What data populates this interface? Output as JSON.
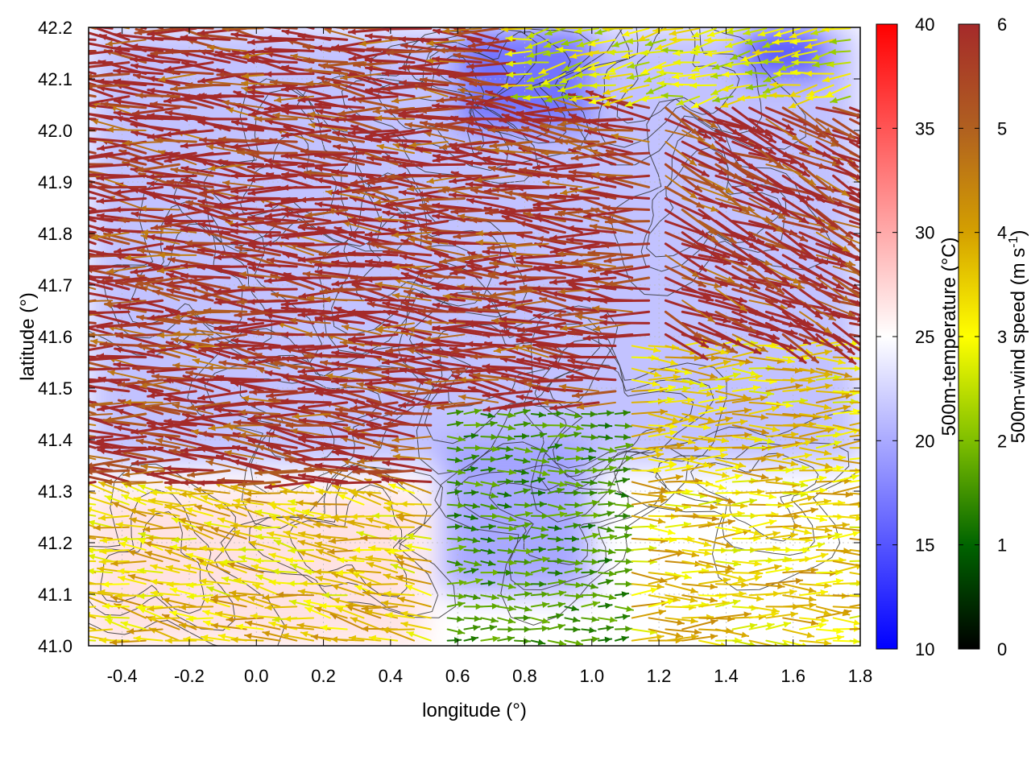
{
  "chart_data": {
    "type": "vector-field",
    "xlabel": "longitude (°)",
    "ylabel": "latitude (°)",
    "xlim": [
      -0.5,
      1.8
    ],
    "ylim": [
      41.0,
      42.2
    ],
    "x_ticks": [
      "-0.4",
      "-0.2",
      "0.0",
      "0.2",
      "0.4",
      "0.6",
      "0.8",
      "1.0",
      "1.2",
      "1.4",
      "1.6",
      "1.8"
    ],
    "x_tick_values": [
      -0.4,
      -0.2,
      0.0,
      0.2,
      0.4,
      0.6,
      0.8,
      1.0,
      1.2,
      1.4,
      1.6,
      1.8
    ],
    "y_ticks": [
      "41.0",
      "41.1",
      "41.2",
      "41.3",
      "41.4",
      "41.5",
      "41.6",
      "41.7",
      "41.8",
      "41.9",
      "42.0",
      "42.1",
      "42.2"
    ],
    "y_tick_values": [
      41.0,
      41.1,
      41.2,
      41.3,
      41.4,
      41.5,
      41.6,
      41.7,
      41.8,
      41.9,
      42.0,
      42.1,
      42.2
    ],
    "grid": true,
    "colorbars": [
      {
        "label": "500m-temperature (°C)",
        "range": [
          10,
          40
        ],
        "ticks": [
          "10",
          "15",
          "20",
          "25",
          "30",
          "35",
          "40"
        ],
        "tick_values": [
          10,
          15,
          20,
          25,
          30,
          35,
          40
        ],
        "colors": [
          "#0000ff",
          "#ffffff",
          "#ff0000"
        ]
      },
      {
        "label": "500m-wind speed (m s",
        "label_sup": "-1",
        "label_end": ")",
        "range": [
          0,
          6
        ],
        "ticks": [
          "0",
          "1",
          "2",
          "3",
          "4",
          "5",
          "6"
        ],
        "tick_values": [
          0,
          1,
          2,
          3,
          4,
          5,
          6
        ],
        "colors": [
          "#000000",
          "#006400",
          "#7fbf00",
          "#ffff00",
          "#d4a000",
          "#b06020",
          "#a52a2a"
        ]
      }
    ],
    "wind_regions": [
      {
        "lon": [
          -0.5,
          1.2
        ],
        "lat": [
          41.3,
          42.2
        ],
        "speed": 6.0,
        "direction_from_deg": 95
      },
      {
        "lon": [
          1.2,
          1.8
        ],
        "lat": [
          41.6,
          42.05
        ],
        "speed": 6.0,
        "direction_from_deg": 295
      },
      {
        "lon": [
          0.55,
          1.1
        ],
        "lat": [
          41.0,
          41.45
        ],
        "speed": 1.5,
        "direction_from_deg": 270
      },
      {
        "lon": [
          -0.5,
          0.55
        ],
        "lat": [
          41.0,
          41.3
        ],
        "speed": 3.5,
        "direction_from_deg": 100
      },
      {
        "lon": [
          1.1,
          1.8
        ],
        "lat": [
          41.0,
          41.6
        ],
        "speed": 3.5,
        "direction_from_deg": 270
      },
      {
        "lon": [
          0.8,
          1.8
        ],
        "lat": [
          42.05,
          42.2
        ],
        "speed": 2.8,
        "direction_from_deg": 80
      }
    ],
    "temperature_field": [
      {
        "lon": [
          -0.5,
          1.8
        ],
        "lat": [
          41.35,
          42.2
        ],
        "temperature": 21
      },
      {
        "lon": [
          -0.5,
          0.5
        ],
        "lat": [
          41.0,
          41.3
        ],
        "temperature": 27
      },
      {
        "lon": [
          0.55,
          1.0
        ],
        "lat": [
          41.1,
          41.4
        ],
        "temperature": 19
      },
      {
        "lon": [
          0.6,
          1.0
        ],
        "lat": [
          42.0,
          42.2
        ],
        "temperature": 16
      },
      {
        "lon": [
          1.45,
          1.7
        ],
        "lat": [
          42.1,
          42.2
        ],
        "temperature": 14
      }
    ]
  },
  "colors": {
    "background": "#ffffff",
    "axis": "#000000",
    "grid": "#bbbbbb",
    "contour": "#333333"
  }
}
